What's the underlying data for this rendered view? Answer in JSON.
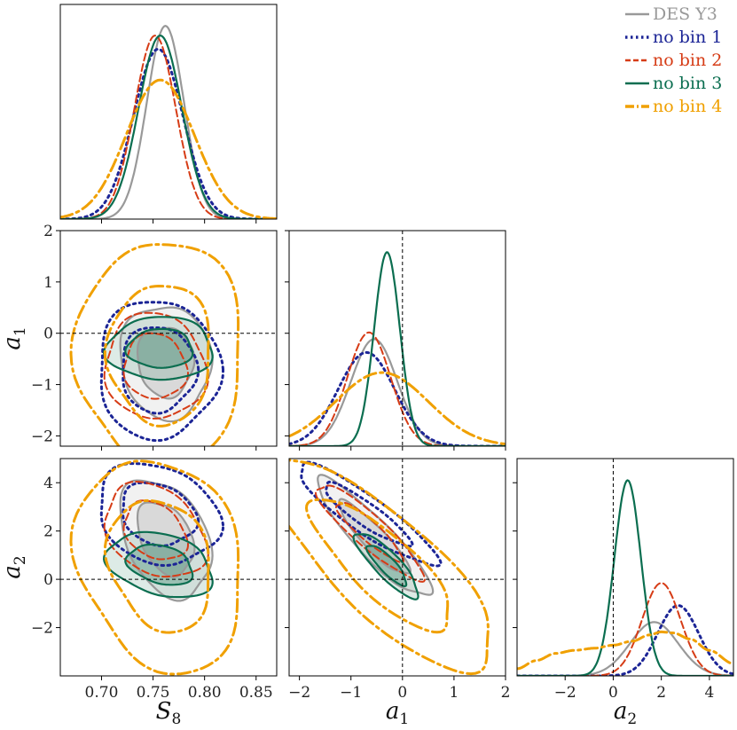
{
  "chart_data": {
    "type": "corner-plot",
    "title": "",
    "parameters": [
      {
        "symbol": "S",
        "sub": "8",
        "range": [
          0.66,
          0.87
        ],
        "ticks": [
          "0.70",
          "0.75",
          "0.80",
          "0.85"
        ],
        "tick_values": [
          0.7,
          0.75,
          0.8,
          0.85
        ],
        "fiducial": null
      },
      {
        "symbol": "a",
        "sub": "1",
        "range": [
          -2.2,
          2.0
        ],
        "ticks": [
          "−2",
          "−1",
          "0",
          "1",
          "2"
        ],
        "tick_values": [
          -2,
          -1,
          0,
          1,
          2
        ],
        "fiducial": 0
      },
      {
        "symbol": "a",
        "sub": "2",
        "range": [
          -4.0,
          5.0
        ],
        "ticks": [
          "−2",
          "0",
          "2",
          "4"
        ],
        "tick_values": [
          -2,
          0,
          2,
          4
        ],
        "fiducial": 0
      }
    ],
    "legend": {
      "position": "top-right"
    },
    "series": [
      {
        "name": "DES Y3",
        "color": "#999999",
        "dash": "solid",
        "width": 2.2,
        "fill": true,
        "means": [
          0.762,
          -0.55,
          1.7
        ],
        "sigmas": [
          0.018,
          0.45,
          1.0
        ],
        "peaks": [
          1.0,
          0.8,
          0.55
        ],
        "alt_pdf": null,
        "corr": {
          "a1_S8": -0.05,
          "a2_S8": -0.35,
          "a2_a1": -0.9
        }
      },
      {
        "name": "no bin 1",
        "color": "#1c2596",
        "dash": "dotted",
        "width": 3.0,
        "fill": false,
        "means": [
          0.755,
          -0.7,
          2.7
        ],
        "sigmas": [
          0.024,
          0.55,
          0.85
        ],
        "peaks": [
          0.88,
          0.7,
          0.72
        ],
        "alt_pdf": null,
        "corr": {
          "a1_S8": 0.0,
          "a2_S8": -0.2,
          "a2_a1": -0.9
        }
      },
      {
        "name": "no bin 2",
        "color": "#d63c16",
        "dash": "dashed",
        "width": 2.0,
        "fill": false,
        "means": [
          0.752,
          -0.65,
          2.0
        ],
        "sigmas": [
          0.02,
          0.42,
          0.8
        ],
        "peaks": [
          0.95,
          0.85,
          0.95
        ],
        "alt_pdf": null,
        "corr": {
          "a1_S8": -0.05,
          "a2_S8": -0.3,
          "a2_a1": -0.9
        }
      },
      {
        "name": "no bin 3",
        "color": "#0b6e50",
        "dash": "solid",
        "width": 2.2,
        "fill": true,
        "means": [
          0.757,
          -0.3,
          0.6
        ],
        "sigmas": [
          0.021,
          0.25,
          0.55
        ],
        "peaks": [
          0.95,
          1.45,
          2.0
        ],
        "alt_pdf": null,
        "corr": {
          "a1_S8": 0.0,
          "a2_S8": -0.3,
          "a2_a1": -0.85
        }
      },
      {
        "name": "no bin 4",
        "color": "#f0a000",
        "dash": "dashdot",
        "width": 3.0,
        "fill": false,
        "means": [
          0.757,
          -0.4,
          0.6
        ],
        "sigmas": [
          0.033,
          0.9,
          1.8
        ],
        "peaks": [
          0.72,
          0.55,
          0.45
        ],
        "alt_pdf": [
          [
            -4.0,
            0.07
          ],
          [
            -3.2,
            0.15
          ],
          [
            -2.4,
            0.22
          ],
          [
            -1.6,
            0.25
          ],
          [
            -0.8,
            0.27
          ],
          [
            0.0,
            0.3
          ],
          [
            0.8,
            0.34
          ],
          [
            1.5,
            0.4
          ],
          [
            2.0,
            0.43
          ],
          [
            2.5,
            0.42
          ],
          [
            3.2,
            0.36
          ],
          [
            4.0,
            0.25
          ],
          [
            5.0,
            0.12
          ]
        ],
        "corr": {
          "a1_S8": 0.0,
          "a2_S8": -0.2,
          "a2_a1": -0.8
        }
      }
    ]
  }
}
